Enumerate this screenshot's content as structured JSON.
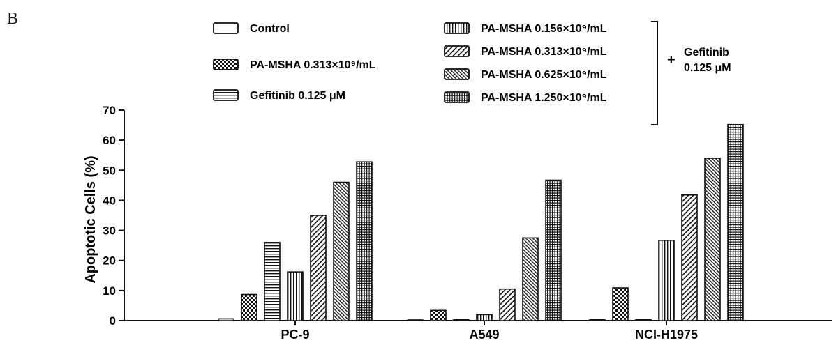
{
  "panel_label": "B",
  "chart_data": {
    "type": "bar",
    "title": "",
    "xlabel": "",
    "ylabel": "Apoptotic Cells (%)",
    "ylim": [
      0,
      70
    ],
    "yticks": [
      0,
      10,
      20,
      30,
      40,
      50,
      60,
      70
    ],
    "categories": [
      "PC-9",
      "A549",
      "NCI-H1975"
    ],
    "series": [
      {
        "name": "Control",
        "pattern": "blank",
        "values": [
          0.6,
          0.2,
          0.3
        ]
      },
      {
        "name": "PA-MSHA 0.313×10⁹/mL",
        "pattern": "checker",
        "values": [
          8.7,
          3.4,
          10.9
        ]
      },
      {
        "name": "Gefitinib 0.125 μM",
        "pattern": "hlines",
        "values": [
          26.0,
          0.3,
          0.3
        ]
      },
      {
        "name": "PA-MSHA 0.156×10⁹/mL",
        "pattern": "vlines",
        "values": [
          16.2,
          2.0,
          26.7
        ]
      },
      {
        "name": "PA-MSHA 0.313×10⁹/mL",
        "pattern": "diag",
        "values": [
          35.0,
          10.5,
          41.8
        ]
      },
      {
        "name": "PA-MSHA 0.625×10⁹/mL",
        "pattern": "diag-dense",
        "values": [
          46.0,
          27.5,
          54.0
        ]
      },
      {
        "name": "PA-MSHA 1.250×10⁹/mL",
        "pattern": "grid",
        "values": [
          52.8,
          46.7,
          65.2
        ]
      }
    ],
    "legend_bracket_label": [
      "Gefitinib",
      "0.125 μM"
    ],
    "legend_plus": "+",
    "grid": false,
    "legend_placement": "top"
  }
}
